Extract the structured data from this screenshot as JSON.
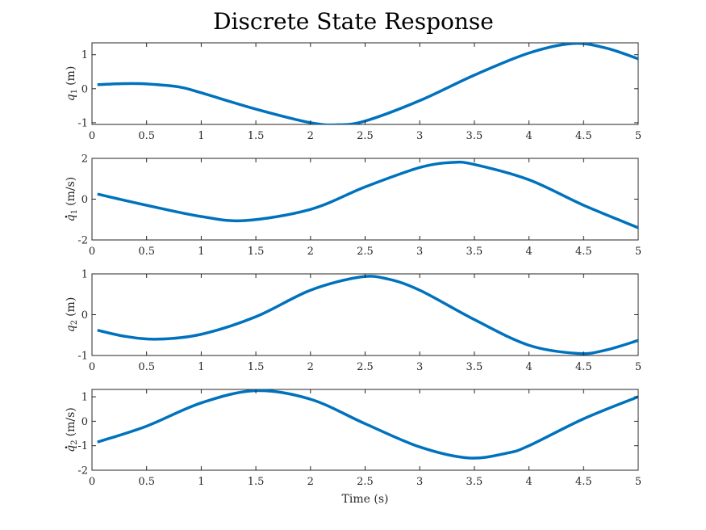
{
  "title": "Discrete State Response",
  "colors": {
    "series": "#0072BD",
    "axis": "#262626",
    "background": "#ffffff"
  },
  "chart_data": [
    {
      "type": "line",
      "ylabel": {
        "symbol": "q",
        "dot": false,
        "subscript": "1",
        "unit": "(m)"
      },
      "xlim": [
        0,
        5
      ],
      "ylim": [
        -1.05,
        1.35
      ],
      "xticks": [
        0,
        0.5,
        1,
        1.5,
        2,
        2.5,
        3,
        3.5,
        4,
        4.5,
        5
      ],
      "xtick_labels": [
        "0",
        "0.5",
        "1",
        "1.5",
        "2",
        "2.5",
        "3",
        "3.5",
        "4",
        "4.5",
        "5"
      ],
      "yticks": [
        -1,
        0,
        1
      ],
      "ytick_labels": [
        "-1",
        "0",
        "1"
      ],
      "grid": false,
      "x": [
        0.05,
        0.3,
        0.5,
        0.8,
        1.0,
        1.5,
        2.0,
        2.25,
        2.5,
        3.0,
        3.5,
        4.0,
        4.4,
        4.7,
        5.0
      ],
      "y": [
        0.12,
        0.15,
        0.14,
        0.05,
        -0.12,
        -0.6,
        -1.0,
        -1.06,
        -0.95,
        -0.35,
        0.4,
        1.05,
        1.33,
        1.2,
        0.88
      ]
    },
    {
      "type": "line",
      "ylabel": {
        "symbol": "q",
        "dot": true,
        "subscript": "1",
        "unit": "(m/s)"
      },
      "xlim": [
        0,
        5
      ],
      "ylim": [
        -2,
        2
      ],
      "xticks": [
        0,
        0.5,
        1,
        1.5,
        2,
        2.5,
        3,
        3.5,
        4,
        4.5,
        5
      ],
      "xtick_labels": [
        "0",
        "0.5",
        "1",
        "1.5",
        "2",
        "2.5",
        "3",
        "3.5",
        "4",
        "4.5",
        "5"
      ],
      "yticks": [
        -2,
        0,
        2
      ],
      "ytick_labels": [
        "-2",
        "0",
        "2"
      ],
      "grid": false,
      "x": [
        0.05,
        0.5,
        1.0,
        1.4,
        2.0,
        2.5,
        3.0,
        3.3,
        3.5,
        4.0,
        4.5,
        5.0
      ],
      "y": [
        0.25,
        -0.3,
        -0.85,
        -1.05,
        -0.5,
        0.6,
        1.55,
        1.8,
        1.7,
        0.95,
        -0.3,
        -1.4
      ]
    },
    {
      "type": "line",
      "ylabel": {
        "symbol": "q",
        "dot": false,
        "subscript": "2",
        "unit": "(m)"
      },
      "xlim": [
        0,
        5
      ],
      "ylim": [
        -1,
        1
      ],
      "xticks": [
        0,
        0.5,
        1,
        1.5,
        2,
        2.5,
        3,
        3.5,
        4,
        4.5,
        5
      ],
      "xtick_labels": [
        "0",
        "0.5",
        "1",
        "1.5",
        "2",
        "2.5",
        "3",
        "3.5",
        "4",
        "4.5",
        "5"
      ],
      "yticks": [
        -1,
        0,
        1
      ],
      "ytick_labels": [
        "-1",
        "0",
        "1"
      ],
      "grid": false,
      "x": [
        0.05,
        0.3,
        0.6,
        1.0,
        1.5,
        2.0,
        2.45,
        2.7,
        3.0,
        3.5,
        4.0,
        4.45,
        4.7,
        5.0
      ],
      "y": [
        -0.38,
        -0.53,
        -0.6,
        -0.48,
        -0.05,
        0.6,
        0.92,
        0.88,
        0.6,
        -0.12,
        -0.75,
        -0.95,
        -0.87,
        -0.63
      ]
    },
    {
      "type": "line",
      "ylabel": {
        "symbol": "q",
        "dot": true,
        "subscript": "2",
        "unit": "(m/s)"
      },
      "xlabel": "Time (s)",
      "xlim": [
        0,
        5
      ],
      "ylim": [
        -2,
        1.3
      ],
      "xticks": [
        0,
        0.5,
        1,
        1.5,
        2,
        2.5,
        3,
        3.5,
        4,
        4.5,
        5
      ],
      "xtick_labels": [
        "0",
        "0.5",
        "1",
        "1.5",
        "2",
        "2.5",
        "3",
        "3.5",
        "4",
        "4.5",
        "5"
      ],
      "yticks": [
        -2,
        -1,
        0,
        1
      ],
      "ytick_labels": [
        "-2",
        "-1",
        "0",
        "1"
      ],
      "grid": false,
      "x": [
        0.05,
        0.5,
        1.0,
        1.5,
        2.0,
        2.5,
        3.0,
        3.45,
        3.8,
        4.0,
        4.5,
        5.0
      ],
      "y": [
        -0.85,
        -0.2,
        0.75,
        1.25,
        0.9,
        -0.1,
        -1.05,
        -1.5,
        -1.3,
        -1.0,
        0.1,
        1.0
      ]
    }
  ]
}
